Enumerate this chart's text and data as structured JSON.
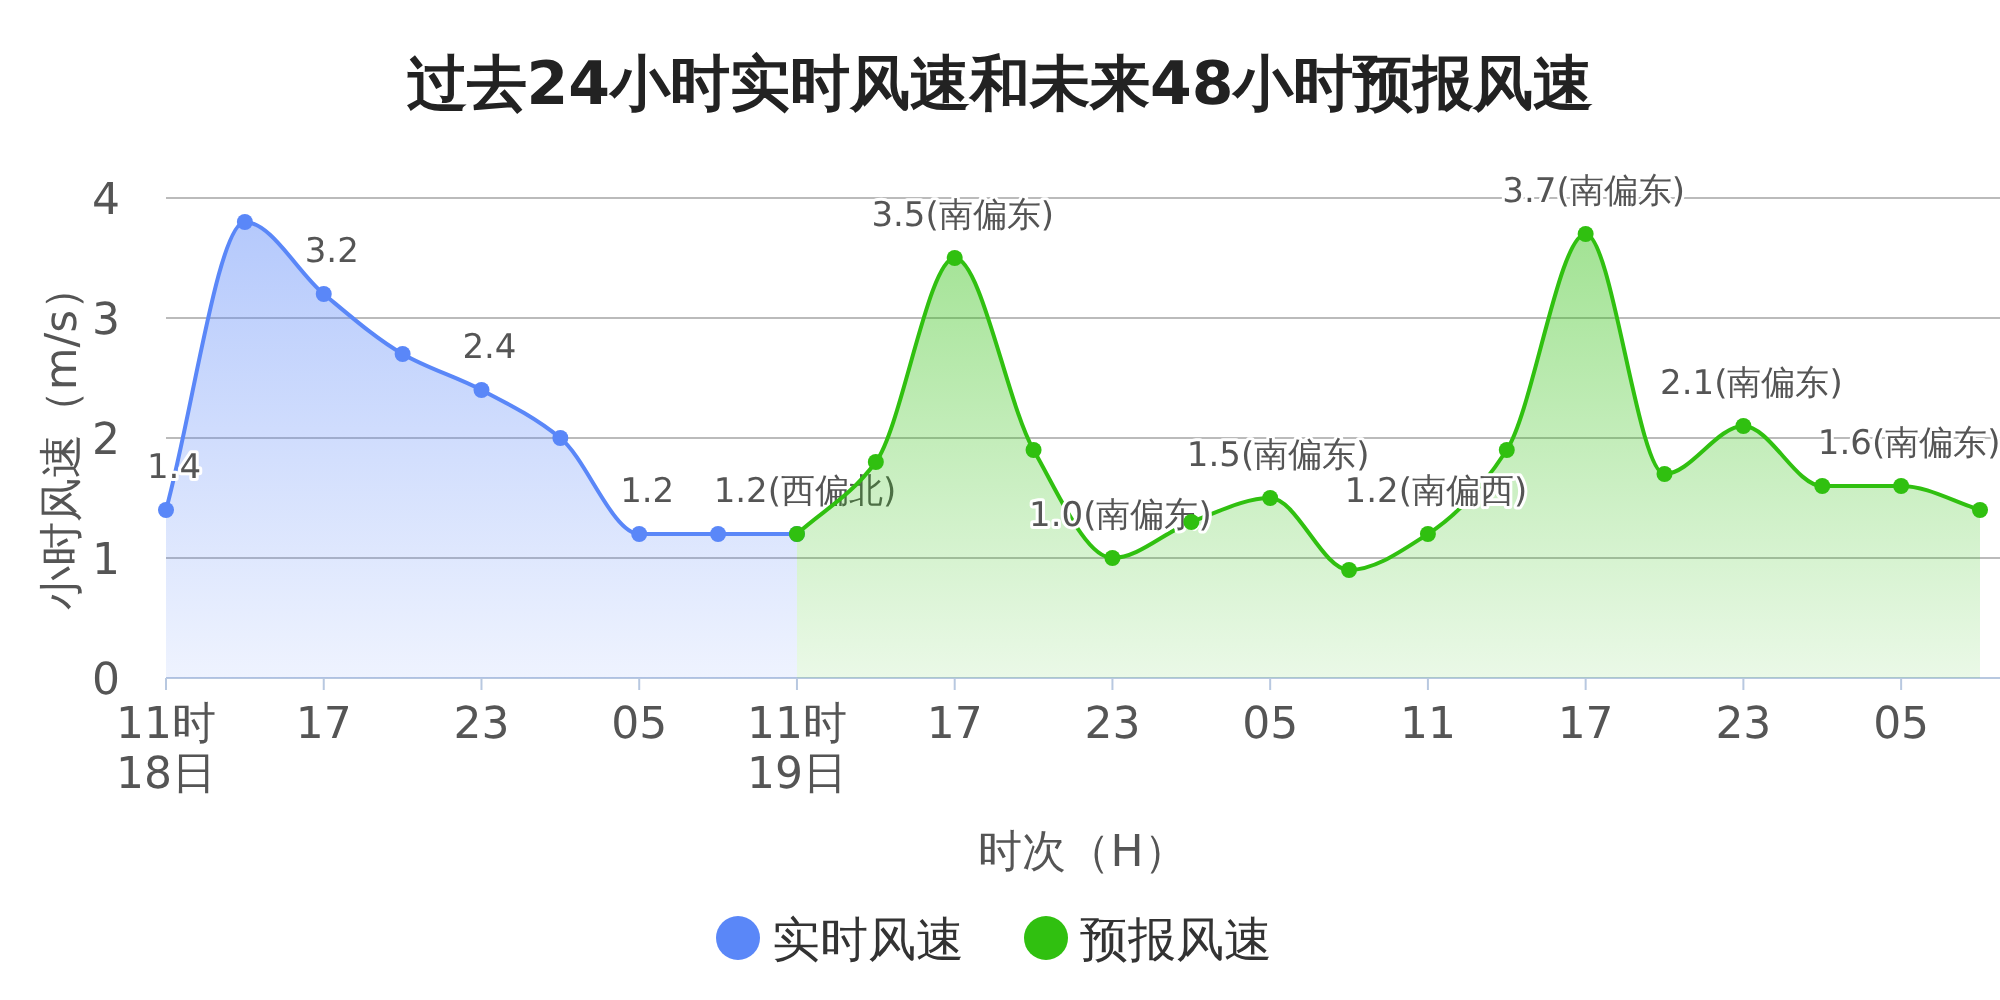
{
  "chart_data": {
    "type": "area",
    "title": "过去24小时实时风速和未来48小时预报风速",
    "xlabel": "时次（H）",
    "ylabel": "小时风速（m/s）",
    "categories": [
      "11时\n18日",
      null,
      "17",
      null,
      "23",
      null,
      "05",
      null,
      "11时\n19日",
      null,
      "17",
      null,
      "23",
      null,
      "05",
      null,
      "11",
      null,
      "17",
      null,
      "23",
      null,
      "05",
      null
    ],
    "series": [
      {
        "name": "实时风速",
        "color": "#5a87f8",
        "values": [
          1.4,
          3.8,
          3.2,
          2.7,
          2.4,
          2.0,
          1.2,
          1.2,
          1.2,
          null,
          null,
          null,
          null,
          null,
          null,
          null,
          null,
          null,
          null,
          null,
          null,
          null,
          null,
          null
        ],
        "value_labels": [
          "1.4",
          null,
          "3.2",
          null,
          "2.4",
          null,
          "1.2",
          null,
          "1.2(西偏北)",
          null,
          null,
          null,
          null,
          null,
          null,
          null,
          null,
          null,
          null,
          null,
          null,
          null,
          null,
          null
        ]
      },
      {
        "name": "预报风速",
        "color": "#30c010",
        "values": [
          null,
          null,
          null,
          null,
          null,
          null,
          null,
          null,
          1.2,
          1.8,
          3.5,
          1.9,
          1.0,
          1.3,
          1.5,
          0.9,
          1.2,
          1.9,
          3.7,
          1.7,
          2.1,
          1.6,
          1.6,
          1.4
        ],
        "value_labels": [
          null,
          null,
          null,
          null,
          null,
          null,
          null,
          null,
          null,
          null,
          "3.5(南偏东)",
          null,
          "1.0(南偏东)",
          null,
          "1.5(南偏东)",
          null,
          "1.2(南偏西)",
          null,
          "3.7(南偏东)",
          null,
          "2.1(南偏东)",
          null,
          "1.6(南偏东)",
          null
        ]
      }
    ],
    "ylim": [
      0,
      4
    ],
    "yticks": [
      0,
      1,
      2,
      3,
      4
    ],
    "grid": "y",
    "legend": "bottom",
    "marker": "circle"
  }
}
